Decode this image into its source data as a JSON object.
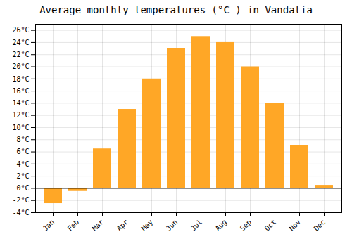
{
  "chart_data": {
    "type": "bar",
    "title": "Average monthly temperatures (°C ) in Vandalia",
    "categories": [
      "Jan",
      "Feb",
      "Mar",
      "Apr",
      "May",
      "Jun",
      "Jul",
      "Aug",
      "Sep",
      "Oct",
      "Nov",
      "Dec"
    ],
    "values": [
      -2.5,
      -0.5,
      6.5,
      13.0,
      18.0,
      23.0,
      25.0,
      24.0,
      20.0,
      14.0,
      7.0,
      0.5
    ],
    "color": "#FFA726",
    "ylim": [
      -4,
      27
    ],
    "yticks": [
      {
        "value": -4,
        "label": "-4°C"
      },
      {
        "value": -2,
        "label": "-2°C"
      },
      {
        "value": 0,
        "label": "0°C"
      },
      {
        "value": 2,
        "label": "2°C"
      },
      {
        "value": 4,
        "label": "4°C"
      },
      {
        "value": 6,
        "label": "6°C"
      },
      {
        "value": 8,
        "label": "8°C"
      },
      {
        "value": 10,
        "label": "10°C"
      },
      {
        "value": 12,
        "label": "12°C"
      },
      {
        "value": 14,
        "label": "14°C"
      },
      {
        "value": 16,
        "label": "16°C"
      },
      {
        "value": 18,
        "label": "18°C"
      },
      {
        "value": 20,
        "label": "20°C"
      },
      {
        "value": 22,
        "label": "22°C"
      },
      {
        "value": 24,
        "label": "24°C"
      },
      {
        "value": 26,
        "label": "26°C"
      }
    ],
    "grid": true
  }
}
